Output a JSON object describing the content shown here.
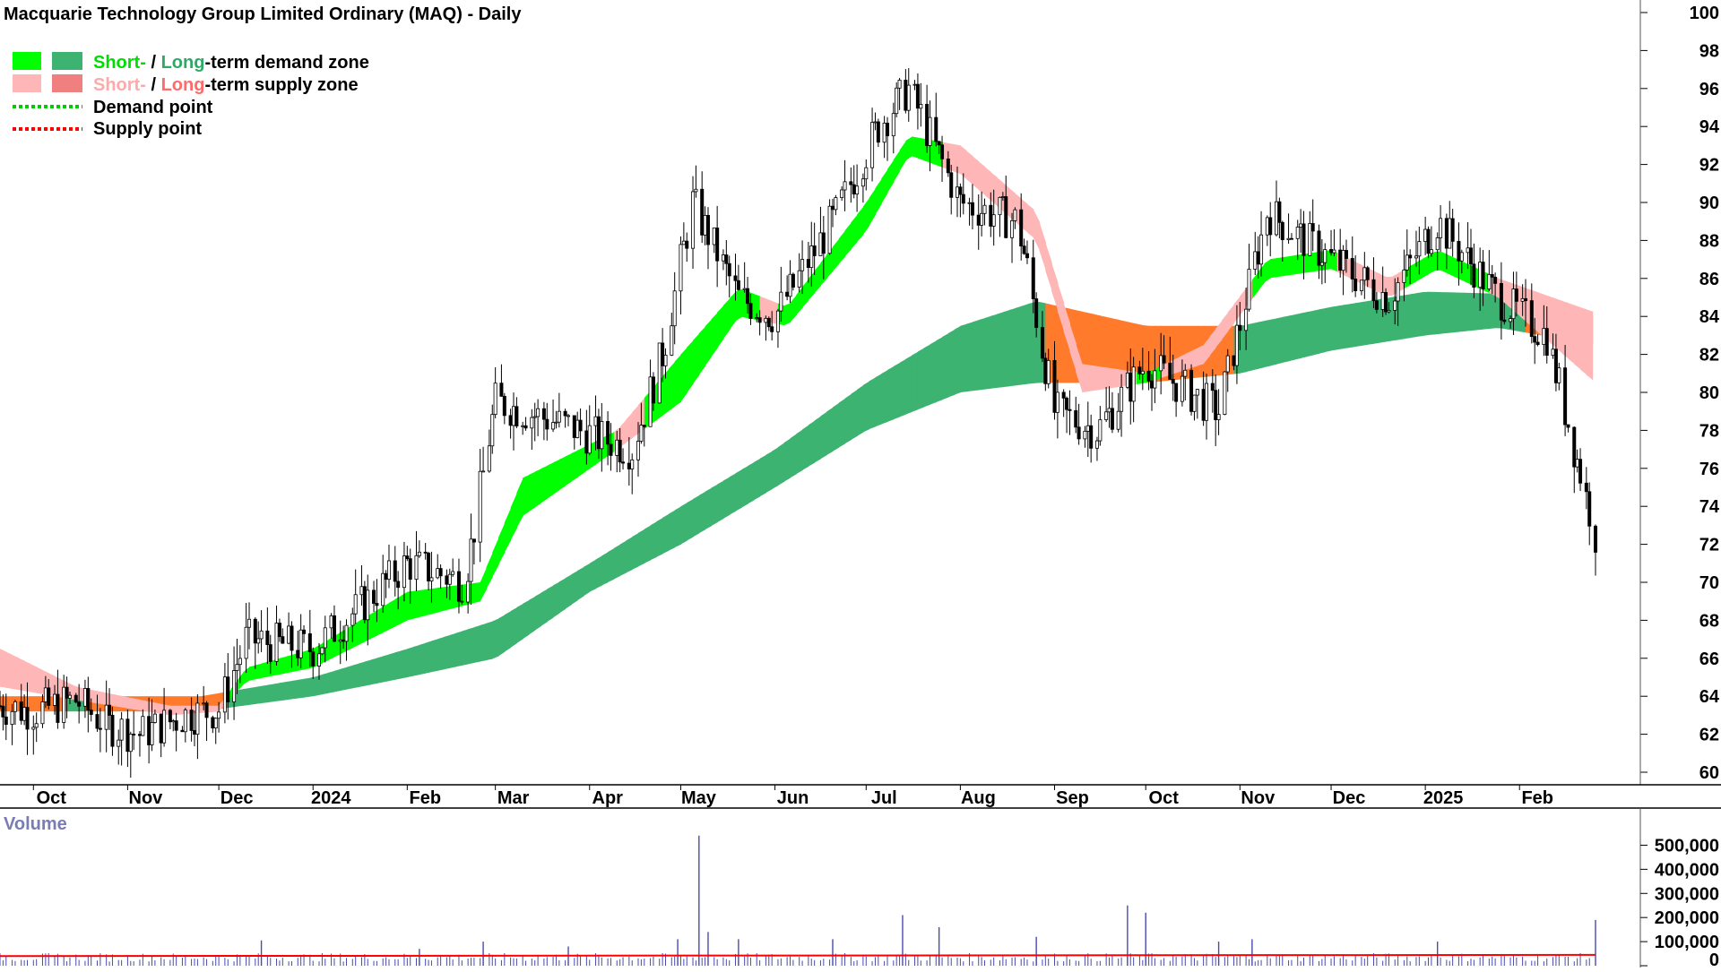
{
  "chart_data": [
    {
      "type": "candlestick",
      "title": "Macquarie Technology Group Limited Ordinary (MAQ) - Daily",
      "ylim": [
        59,
        100
      ],
      "yticks": [
        60,
        62,
        64,
        66,
        68,
        70,
        72,
        74,
        76,
        78,
        80,
        82,
        84,
        86,
        88,
        90,
        92,
        94,
        96,
        98,
        100
      ],
      "x_tick_labels": [
        "Oct",
        "Nov",
        "Dec",
        "2024",
        "Feb",
        "Mar",
        "Apr",
        "May",
        "Jun",
        "Jul",
        "Aug",
        "Sep",
        "Oct",
        "Nov",
        "Dec",
        "2025",
        "Feb"
      ],
      "legend": {
        "demand_zone": {
          "short": "Short-",
          "sep": "/",
          "long": "Long",
          "rest": "-term demand zone"
        },
        "supply_zone": {
          "short": "Short-",
          "sep": "/",
          "long": "Long",
          "rest": "-term supply zone"
        },
        "demand_point": "Demand point",
        "supply_point": "Supply point"
      },
      "colors": {
        "short_demand": "#00ff00",
        "long_demand": "#3cb371",
        "short_supply": "#ffb6b6",
        "long_supply": "#ff7a2a",
        "demand_point": "#00cc00",
        "supply_point": "#ff0000",
        "candle": "#000000",
        "short_label": "#00dd00",
        "long_label": "#2eaa66",
        "supply_short_label": "#ffaaaa",
        "supply_long_label": "#ff6a6a"
      },
      "price_path": {
        "x": [
          "2023-09-20",
          "2023-10-01",
          "2023-10-15",
          "2023-10-25",
          "2023-11-05",
          "2023-11-20",
          "2023-12-01",
          "2023-12-10",
          "2024-01-01",
          "2024-01-15",
          "2024-02-01",
          "2024-02-20",
          "2024-03-01",
          "2024-03-20",
          "2024-04-15",
          "2024-04-25",
          "2024-05-05",
          "2024-05-20",
          "2024-06-01",
          "2024-06-20",
          "2024-07-05",
          "2024-07-15",
          "2024-08-01",
          "2024-08-20",
          "2024-09-01",
          "2024-09-15",
          "2024-10-01",
          "2024-10-25",
          "2024-11-10",
          "2024-12-01",
          "2024-12-20",
          "2025-01-05",
          "2025-01-25",
          "2025-02-10",
          "2025-02-26"
        ],
        "y": [
          63.5,
          63.2,
          63.8,
          62.5,
          62.0,
          63.0,
          63.3,
          67.0,
          66.5,
          68.5,
          71.0,
          70.0,
          79.5,
          78.5,
          77.0,
          82.0,
          90.0,
          85.0,
          84.0,
          89.0,
          94.0,
          96.0,
          90.0,
          89.0,
          79.0,
          78.0,
          81.5,
          79.0,
          89.5,
          87.0,
          85.0,
          89.0,
          85.0,
          83.0,
          72.5
        ]
      },
      "long_term_zone": {
        "x": [
          "2023-09-20",
          "2023-11-01",
          "2023-11-25",
          "2024-01-01",
          "2024-02-01",
          "2024-03-01",
          "2024-04-01",
          "2024-05-01",
          "2024-06-01",
          "2024-07-01",
          "2024-08-01",
          "2024-08-26",
          "2024-10-01",
          "2024-11-01",
          "2024-12-01",
          "2025-01-01",
          "2025-01-25",
          "2025-02-26"
        ],
        "upper": [
          64.0,
          64.0,
          64.0,
          65.0,
          66.5,
          68.0,
          71.0,
          74.0,
          77.0,
          80.5,
          83.5,
          84.8,
          83.5,
          83.5,
          84.5,
          85.3,
          85.2,
          84.0
        ],
        "lower": [
          63.2,
          63.2,
          63.2,
          64.0,
          65.0,
          66.0,
          69.5,
          72.0,
          75.0,
          78.0,
          80.0,
          80.5,
          80.5,
          81.0,
          82.2,
          83.0,
          83.4,
          82.5
        ]
      },
      "short_term_zone": {
        "x": [
          "2023-09-20",
          "2023-10-15",
          "2023-11-15",
          "2023-12-01",
          "2023-12-10",
          "2024-01-01",
          "2024-02-01",
          "2024-02-25",
          "2024-03-10",
          "2024-04-10",
          "2024-05-01",
          "2024-05-20",
          "2024-06-05",
          "2024-07-01",
          "2024-07-15",
          "2024-08-01",
          "2024-08-26",
          "2024-09-10",
          "2024-10-01",
          "2024-10-20",
          "2024-11-10",
          "2024-12-01",
          "2024-12-20",
          "2025-01-05",
          "2025-01-25",
          "2025-02-26"
        ],
        "upper": [
          66.5,
          64.5,
          63.5,
          63.5,
          65.5,
          66.5,
          69.5,
          70.0,
          75.5,
          78.0,
          82.0,
          85.5,
          84.5,
          90.0,
          93.5,
          93.0,
          89.5,
          81.5,
          81.0,
          82.5,
          87.0,
          87.5,
          86.0,
          87.5,
          86.0,
          84.2
        ],
        "lower": [
          64.5,
          63.8,
          63.0,
          63.2,
          64.8,
          65.5,
          68.0,
          69.0,
          73.5,
          77.0,
          79.5,
          84.0,
          83.5,
          88.5,
          92.5,
          91.5,
          88.0,
          80.0,
          80.5,
          81.5,
          86.0,
          86.5,
          85.0,
          86.5,
          85.0,
          80.5
        ]
      }
    },
    {
      "type": "bar",
      "title": "Volume",
      "ylim": [
        0,
        550000
      ],
      "yticks": [
        0,
        100000,
        200000,
        300000,
        400000,
        500000
      ],
      "ytick_labels": [
        "0",
        "100,000",
        "200,000",
        "300,000",
        "400,000",
        "500,000"
      ],
      "spikes": [
        {
          "x": "2023-12-15",
          "value": 105000
        },
        {
          "x": "2024-02-05",
          "value": 70000
        },
        {
          "x": "2024-02-26",
          "value": 100000
        },
        {
          "x": "2024-03-25",
          "value": 80000
        },
        {
          "x": "2024-04-30",
          "value": 110000
        },
        {
          "x": "2024-05-07",
          "value": 540000
        },
        {
          "x": "2024-05-10",
          "value": 140000
        },
        {
          "x": "2024-05-20",
          "value": 110000
        },
        {
          "x": "2024-06-20",
          "value": 110000
        },
        {
          "x": "2024-07-13",
          "value": 210000
        },
        {
          "x": "2024-07-25",
          "value": 160000
        },
        {
          "x": "2024-08-26",
          "value": 120000
        },
        {
          "x": "2024-09-25",
          "value": 250000
        },
        {
          "x": "2024-10-01",
          "value": 220000
        },
        {
          "x": "2024-10-25",
          "value": 100000
        },
        {
          "x": "2024-11-05",
          "value": 110000
        },
        {
          "x": "2025-01-05",
          "value": 100000
        },
        {
          "x": "2025-02-26",
          "value": 190000
        }
      ],
      "baseline_volume": 35000,
      "moving_average": 40000,
      "colors": {
        "bar": "#4a4ab0",
        "ma": "#ff0000",
        "title": "#7b7bb5"
      }
    }
  ]
}
